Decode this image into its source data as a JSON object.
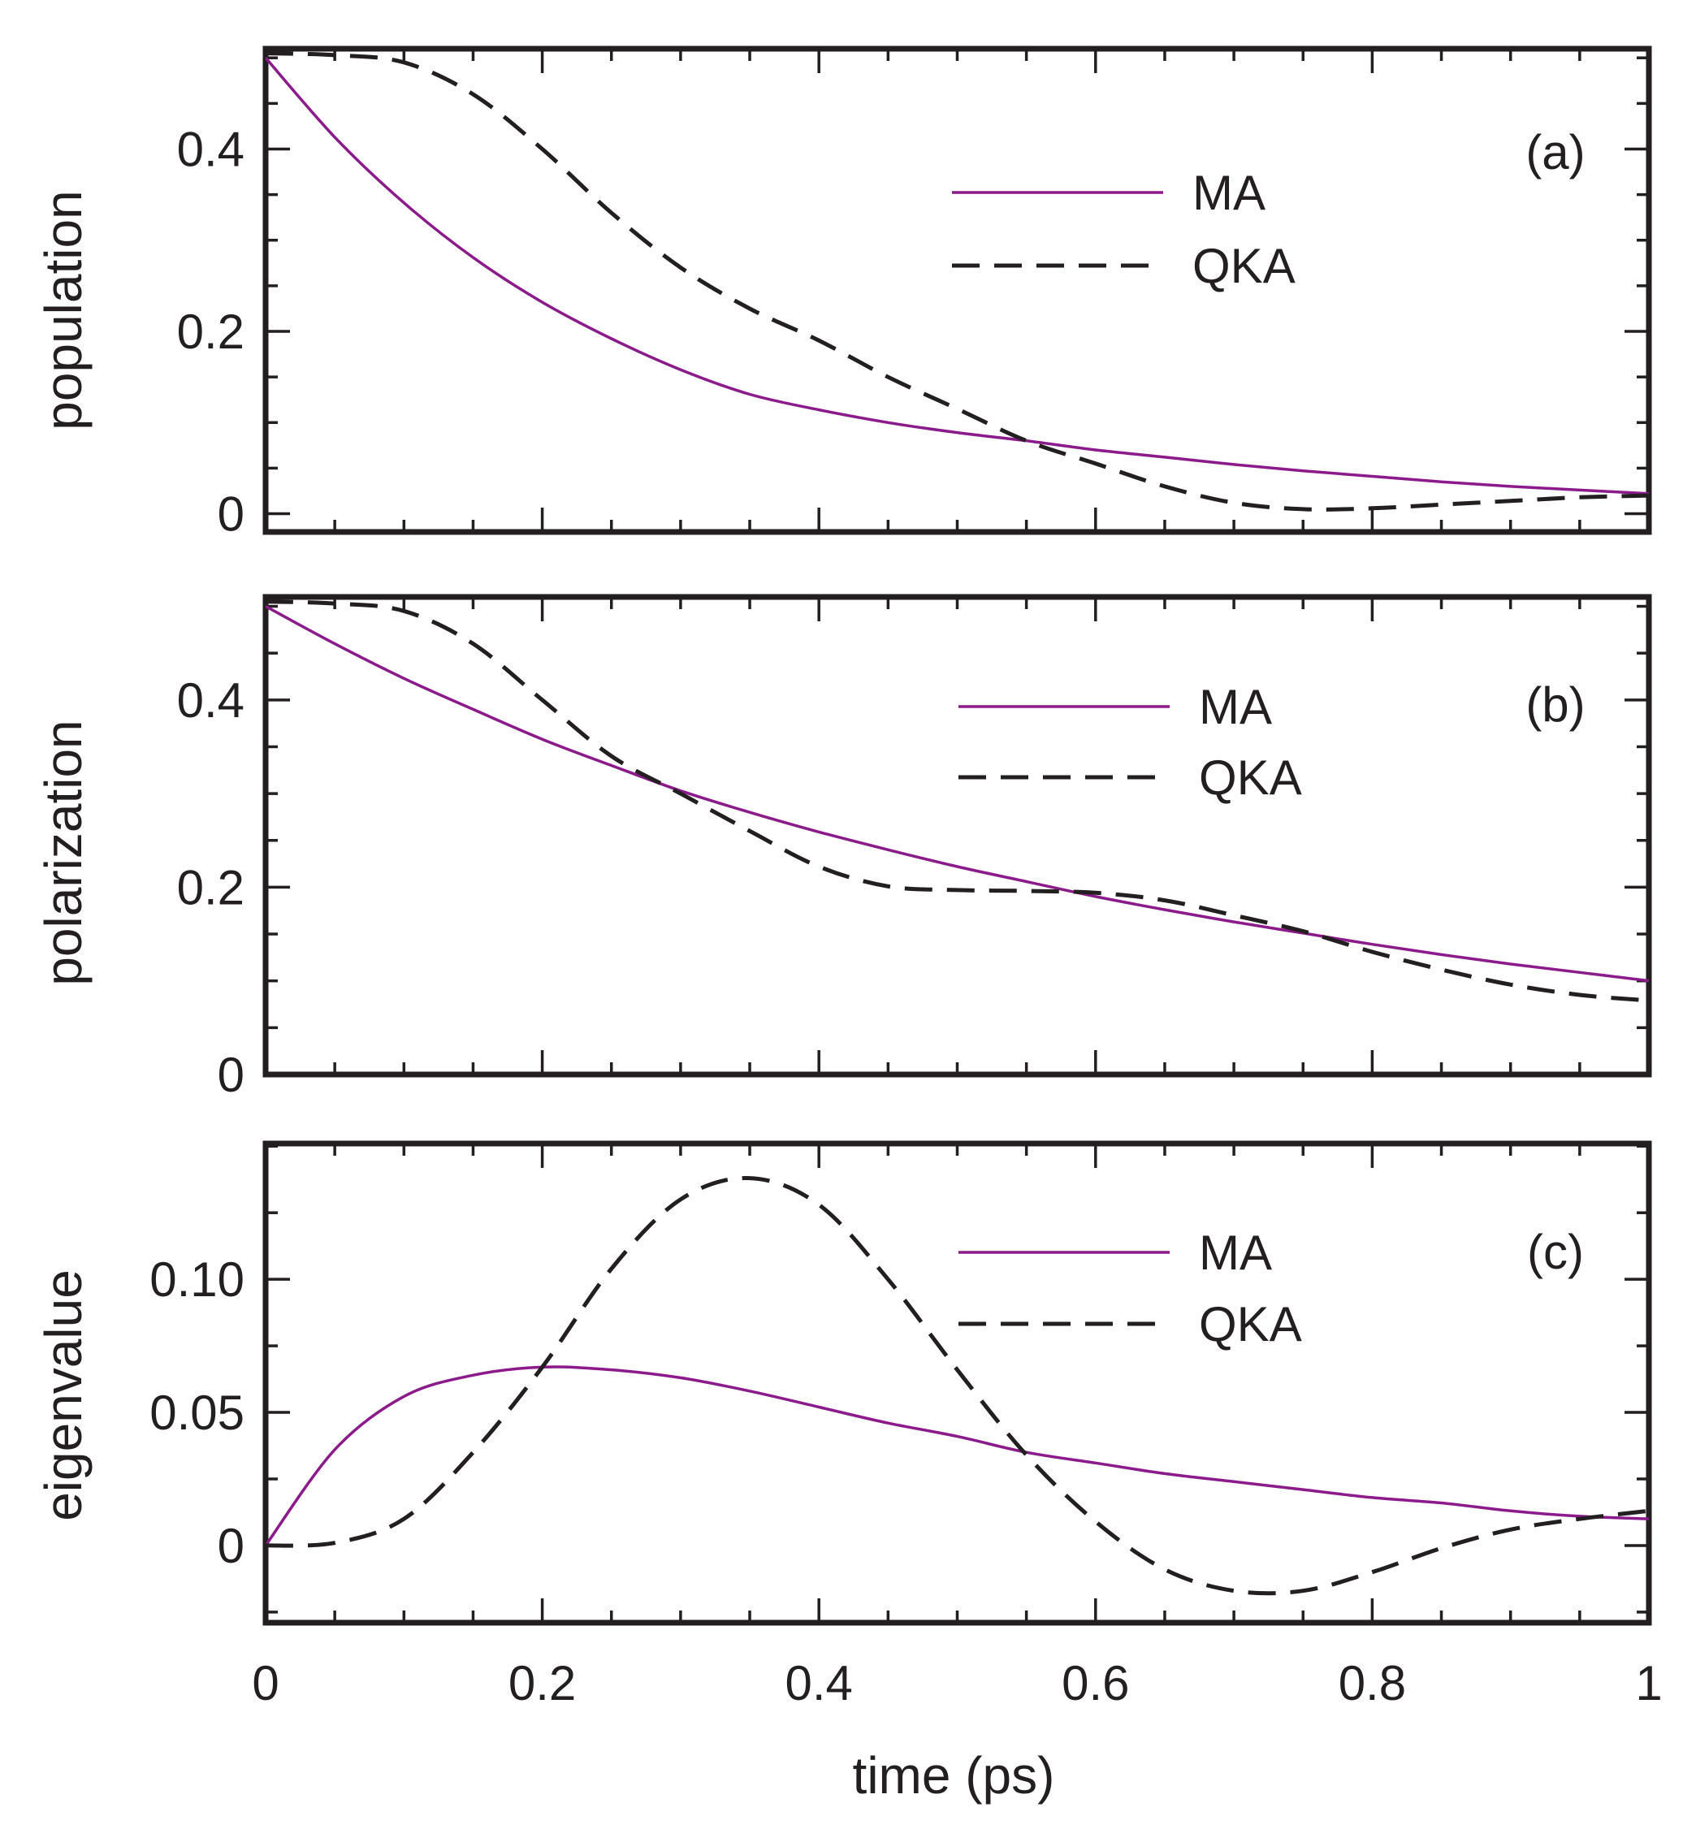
{
  "chart_data": [
    {
      "type": "line",
      "panel_label": "(a)",
      "ylabel": "population",
      "xlabel": "time (ps)",
      "xlim": [
        0,
        1
      ],
      "ylim": [
        -0.02,
        0.51
      ],
      "yticks": [
        0,
        0.2,
        0.4
      ],
      "ytick_labels": [
        "0",
        "0.2",
        "0.4"
      ],
      "ytick_minor_step": 0.05,
      "legend_position": "upper-center-right",
      "x": [
        0,
        0.05,
        0.1,
        0.15,
        0.2,
        0.25,
        0.3,
        0.35,
        0.4,
        0.45,
        0.5,
        0.55,
        0.6,
        0.65,
        0.7,
        0.75,
        0.8,
        0.85,
        0.9,
        0.95,
        1.0
      ],
      "series": [
        {
          "name": "MA",
          "style": "solid",
          "color": "#8b1a8b",
          "values": [
            0.5,
            0.413,
            0.341,
            0.281,
            0.232,
            0.192,
            0.158,
            0.131,
            0.114,
            0.1,
            0.089,
            0.08,
            0.07,
            0.062,
            0.054,
            0.047,
            0.041,
            0.035,
            0.03,
            0.026,
            0.022
          ]
        },
        {
          "name": "QKA",
          "style": "dashed",
          "color": "#231f20",
          "values": [
            0.505,
            0.503,
            0.495,
            0.46,
            0.4,
            0.33,
            0.27,
            0.225,
            0.19,
            0.15,
            0.115,
            0.08,
            0.055,
            0.03,
            0.012,
            0.005,
            0.006,
            0.01,
            0.014,
            0.018,
            0.02
          ]
        }
      ]
    },
    {
      "type": "line",
      "panel_label": "(b)",
      "ylabel": "polarization",
      "xlabel": "time (ps)",
      "xlim": [
        0,
        1
      ],
      "ylim": [
        0,
        0.51
      ],
      "yticks": [
        0,
        0.2,
        0.4
      ],
      "ytick_labels": [
        "0",
        "0.2",
        "0.4"
      ],
      "ytick_minor_step": 0.05,
      "legend_position": "upper-center-right",
      "x": [
        0,
        0.05,
        0.1,
        0.15,
        0.2,
        0.25,
        0.3,
        0.35,
        0.4,
        0.45,
        0.5,
        0.55,
        0.6,
        0.65,
        0.7,
        0.75,
        0.8,
        0.85,
        0.9,
        0.95,
        1.0
      ],
      "series": [
        {
          "name": "MA",
          "style": "solid",
          "color": "#8b1a8b",
          "values": [
            0.5,
            0.46,
            0.423,
            0.39,
            0.358,
            0.33,
            0.303,
            0.28,
            0.259,
            0.24,
            0.222,
            0.206,
            0.19,
            0.176,
            0.163,
            0.151,
            0.139,
            0.128,
            0.118,
            0.109,
            0.1
          ]
        },
        {
          "name": "QKA",
          "style": "dashed",
          "color": "#231f20",
          "values": [
            0.505,
            0.503,
            0.495,
            0.46,
            0.4,
            0.34,
            0.3,
            0.26,
            0.222,
            0.201,
            0.197,
            0.196,
            0.194,
            0.186,
            0.17,
            0.153,
            0.131,
            0.112,
            0.096,
            0.085,
            0.079
          ]
        }
      ]
    },
    {
      "type": "line",
      "panel_label": "(c)",
      "ylabel": "eigenvalue",
      "xlabel": "time (ps)",
      "xlim": [
        0,
        1
      ],
      "ylim": [
        -0.029,
        0.151
      ],
      "yticks": [
        0,
        0.05,
        0.1
      ],
      "ytick_labels": [
        "0",
        "0.05",
        "0.10"
      ],
      "ytick_minor_step": 0.025,
      "xticks": [
        0,
        0.2,
        0.4,
        0.6,
        0.8,
        1
      ],
      "xtick_labels": [
        "0",
        "0.2",
        "0.4",
        "0.6",
        "0.8",
        "1"
      ],
      "xtick_minor_step": 0.05,
      "legend_position": "upper-center-right",
      "x": [
        0,
        0.05,
        0.1,
        0.15,
        0.2,
        0.25,
        0.3,
        0.35,
        0.4,
        0.45,
        0.5,
        0.55,
        0.6,
        0.65,
        0.7,
        0.75,
        0.8,
        0.85,
        0.9,
        0.95,
        1.0
      ],
      "series": [
        {
          "name": "MA",
          "style": "solid",
          "color": "#8b1a8b",
          "values": [
            0.0,
            0.036,
            0.056,
            0.064,
            0.067,
            0.066,
            0.063,
            0.058,
            0.052,
            0.046,
            0.041,
            0.035,
            0.031,
            0.027,
            0.024,
            0.021,
            0.018,
            0.016,
            0.013,
            0.011,
            0.01
          ]
        },
        {
          "name": "QKA",
          "style": "dashed",
          "color": "#231f20",
          "values": [
            0.0,
            0.001,
            0.01,
            0.035,
            0.067,
            0.104,
            0.13,
            0.138,
            0.128,
            0.1,
            0.066,
            0.034,
            0.009,
            -0.009,
            -0.017,
            -0.017,
            -0.01,
            -0.001,
            0.006,
            0.01,
            0.013
          ]
        }
      ]
    }
  ]
}
